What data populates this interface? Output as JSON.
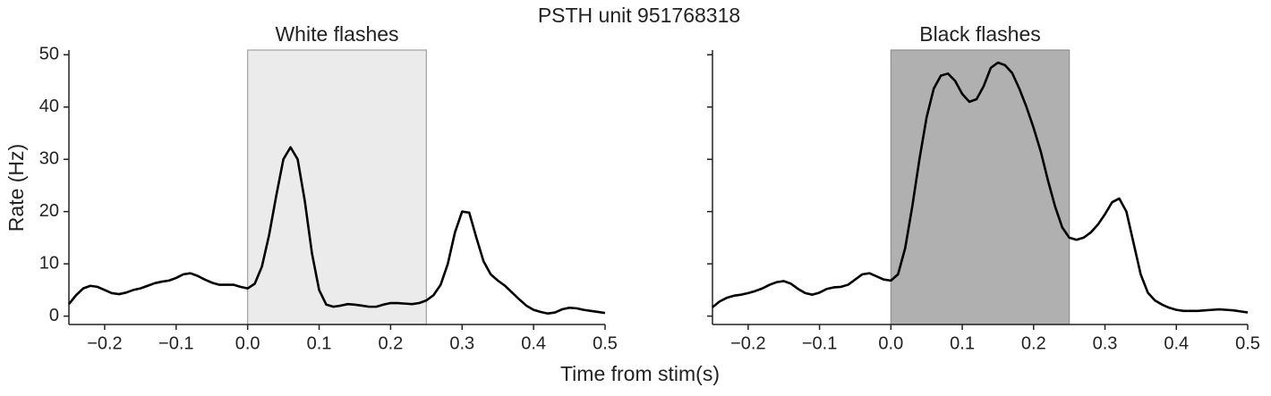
{
  "title": "PSTH unit 951768318",
  "xlabel": "Time from stim(s)",
  "ylabel": "Rate (Hz)",
  "chart_data": [
    {
      "type": "line",
      "title": "White flashes",
      "color": "#000000",
      "span": [
        0,
        0.25
      ],
      "span_color": "#ebebeb",
      "span_edge": "#a0a0a0",
      "xlim": [
        -0.25,
        0.5
      ],
      "ylim": [
        -1.6,
        50.9
      ],
      "xticks": [
        {
          "value": -0.2,
          "label": "−0.2"
        },
        {
          "value": -0.1,
          "label": "−0.1"
        },
        {
          "value": 0,
          "label": "0.0"
        },
        0.1,
        0.2,
        0.3,
        0.4,
        0.5
      ],
      "yticks": [
        0,
        10,
        20,
        30,
        40,
        50
      ],
      "ytick_labels": true,
      "x": [
        -0.25,
        -0.24,
        -0.23,
        -0.22,
        -0.21,
        -0.2,
        -0.19,
        -0.18,
        -0.17,
        -0.16,
        -0.15,
        -0.14,
        -0.13,
        -0.12,
        -0.11,
        -0.1,
        -0.09,
        -0.08,
        -0.07,
        -0.06,
        -0.05,
        -0.04,
        -0.03,
        -0.02,
        -0.01,
        0,
        0.01,
        0.02,
        0.03,
        0.04,
        0.05,
        0.06,
        0.07,
        0.08,
        0.09,
        0.1,
        0.11,
        0.12,
        0.13,
        0.14,
        0.15,
        0.16,
        0.17,
        0.18,
        0.19,
        0.2,
        0.21,
        0.22,
        0.23,
        0.24,
        0.25,
        0.26,
        0.27,
        0.28,
        0.29,
        0.3,
        0.31,
        0.32,
        0.33,
        0.34,
        0.35,
        0.36,
        0.37,
        0.38,
        0.39,
        0.4,
        0.41,
        0.42,
        0.43,
        0.44,
        0.45,
        0.46,
        0.47,
        0.48,
        0.49,
        0.5
      ],
      "values": [
        2.3,
        4.0,
        5.3,
        5.8,
        5.6,
        5.0,
        4.4,
        4.2,
        4.5,
        5.0,
        5.3,
        5.8,
        6.3,
        6.6,
        6.8,
        7.3,
        8.0,
        8.2,
        7.7,
        7.0,
        6.4,
        6.0,
        6.0,
        6.0,
        5.6,
        5.3,
        6.2,
        9.5,
        15.5,
        23,
        30,
        32.3,
        30,
        22,
        12,
        5,
        2.2,
        1.8,
        2.0,
        2.3,
        2.2,
        2.0,
        1.8,
        1.8,
        2.2,
        2.5,
        2.5,
        2.4,
        2.3,
        2.5,
        3.0,
        4.0,
        6.0,
        10,
        16,
        20,
        19.8,
        15,
        10.5,
        8,
        6.8,
        5.8,
        4.5,
        3.2,
        2,
        1.2,
        0.8,
        0.5,
        0.7,
        1.3,
        1.6,
        1.5,
        1.2,
        1.0,
        0.8,
        0.6
      ]
    },
    {
      "type": "line",
      "title": "Black flashes",
      "color": "#000000",
      "span": [
        0,
        0.25
      ],
      "span_color": "#b0b0b0",
      "span_edge": "#909090",
      "xlim": [
        -0.25,
        0.5
      ],
      "ylim": [
        -1.6,
        50.9
      ],
      "xticks": [
        {
          "value": -0.2,
          "label": "−0.2"
        },
        {
          "value": -0.1,
          "label": "−0.1"
        },
        {
          "value": 0,
          "label": "0.0"
        },
        0.1,
        0.2,
        0.3,
        0.4,
        0.5
      ],
      "yticks": [
        0,
        10,
        20,
        30,
        40,
        50
      ],
      "ytick_labels": false,
      "x": [
        -0.25,
        -0.24,
        -0.23,
        -0.22,
        -0.21,
        -0.2,
        -0.19,
        -0.18,
        -0.17,
        -0.16,
        -0.15,
        -0.14,
        -0.13,
        -0.12,
        -0.11,
        -0.1,
        -0.09,
        -0.08,
        -0.07,
        -0.06,
        -0.05,
        -0.04,
        -0.03,
        -0.02,
        -0.01,
        0,
        0.01,
        0.02,
        0.03,
        0.04,
        0.05,
        0.06,
        0.07,
        0.08,
        0.09,
        0.1,
        0.11,
        0.12,
        0.13,
        0.14,
        0.15,
        0.16,
        0.17,
        0.18,
        0.19,
        0.2,
        0.21,
        0.22,
        0.23,
        0.24,
        0.25,
        0.26,
        0.27,
        0.28,
        0.29,
        0.3,
        0.31,
        0.32,
        0.33,
        0.34,
        0.35,
        0.36,
        0.37,
        0.38,
        0.39,
        0.4,
        0.41,
        0.42,
        0.43,
        0.44,
        0.45,
        0.46,
        0.47,
        0.48,
        0.49,
        0.5
      ],
      "values": [
        1.7,
        2.8,
        3.5,
        3.9,
        4.1,
        4.4,
        4.8,
        5.3,
        6.0,
        6.5,
        6.7,
        6.2,
        5.2,
        4.4,
        4.1,
        4.5,
        5.2,
        5.5,
        5.6,
        6.0,
        7.0,
        8.0,
        8.2,
        7.6,
        7.0,
        6.8,
        8.0,
        13,
        21,
        30,
        38,
        43.5,
        46,
        46.4,
        45,
        42.5,
        41,
        41.5,
        44,
        47.5,
        48.5,
        48,
        46.5,
        43.5,
        40,
        36,
        31.5,
        26,
        21,
        17,
        15,
        14.6,
        15,
        16,
        17.5,
        19.5,
        21.8,
        22.5,
        20,
        14,
        8,
        4.5,
        3,
        2.2,
        1.6,
        1.2,
        1.0,
        1.0,
        1.0,
        1.1,
        1.2,
        1.3,
        1.2,
        1.1,
        0.9,
        0.7
      ]
    }
  ]
}
